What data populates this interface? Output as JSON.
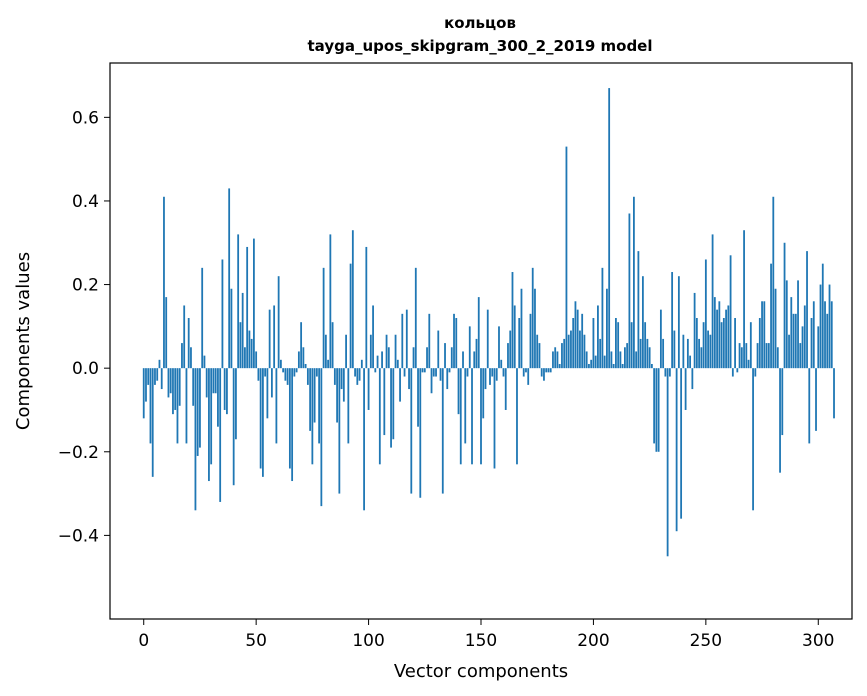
{
  "chart_data": {
    "type": "bar",
    "title_line1": "кольцов",
    "title_line2": "tayga_upos_skipgram_300_2_2019 model",
    "xlabel": "Vector components",
    "ylabel": "Components values",
    "xlim": [
      -15,
      315
    ],
    "ylim": [
      -0.6,
      0.73
    ],
    "xticks": [
      0,
      50,
      100,
      150,
      200,
      250,
      300
    ],
    "yticks": [
      -0.4,
      -0.2,
      0.0,
      0.2,
      0.4,
      0.6
    ],
    "ytick_labels": [
      "−0.4",
      "−0.2",
      "0.0",
      "0.2",
      "0.4",
      "0.6"
    ],
    "xtick_labels": [
      "0",
      "50",
      "100",
      "150",
      "200",
      "250",
      "300"
    ],
    "bar_color": "#1f77b4",
    "grid": false,
    "values": [
      -0.12,
      -0.08,
      -0.04,
      -0.18,
      -0.26,
      -0.04,
      -0.03,
      0.02,
      -0.05,
      0.41,
      0.17,
      -0.07,
      -0.06,
      -0.11,
      -0.1,
      -0.18,
      -0.09,
      0.06,
      0.15,
      -0.18,
      0.12,
      0.05,
      -0.09,
      -0.34,
      -0.21,
      -0.19,
      0.24,
      0.03,
      -0.07,
      -0.27,
      -0.23,
      -0.06,
      -0.06,
      -0.14,
      -0.32,
      0.26,
      -0.1,
      -0.11,
      0.43,
      0.19,
      -0.28,
      -0.17,
      0.32,
      0.11,
      0.18,
      0.05,
      0.29,
      0.09,
      0.07,
      0.31,
      0.04,
      -0.03,
      -0.24,
      -0.26,
      -0.02,
      -0.12,
      0.14,
      -0.07,
      0.15,
      -0.18,
      0.22,
      0.02,
      -0.01,
      -0.03,
      -0.04,
      -0.24,
      -0.27,
      -0.02,
      -0.01,
      0.04,
      0.11,
      0.05,
      0.01,
      -0.04,
      -0.15,
      -0.23,
      -0.13,
      -0.02,
      -0.18,
      -0.33,
      0.24,
      0.08,
      0.02,
      0.32,
      0.11,
      -0.04,
      -0.13,
      -0.3,
      -0.05,
      -0.08,
      0.08,
      -0.18,
      0.25,
      0.33,
      -0.02,
      -0.04,
      -0.03,
      0.02,
      -0.34,
      0.29,
      -0.1,
      0.08,
      0.15,
      -0.01,
      0.03,
      -0.23,
      0.04,
      -0.16,
      0.08,
      0.05,
      -0.19,
      -0.17,
      0.08,
      0.02,
      -0.08,
      0.13,
      -0.02,
      0.14,
      -0.05,
      -0.3,
      0.05,
      0.24,
      -0.14,
      -0.31,
      -0.01,
      -0.01,
      0.05,
      0.13,
      -0.06,
      -0.02,
      -0.02,
      0.09,
      -0.03,
      -0.3,
      0.06,
      -0.05,
      -0.01,
      0.05,
      0.13,
      0.12,
      -0.11,
      -0.23,
      0.04,
      -0.18,
      -0.02,
      0.1,
      -0.23,
      0.04,
      0.07,
      0.17,
      -0.23,
      -0.12,
      -0.05,
      0.14,
      -0.04,
      -0.02,
      -0.24,
      -0.03,
      0.1,
      0.02,
      -0.02,
      -0.1,
      0.06,
      0.09,
      0.23,
      0.15,
      -0.23,
      0.12,
      0.19,
      -0.02,
      -0.01,
      -0.04,
      0.13,
      0.24,
      0.19,
      0.08,
      0.06,
      -0.02,
      -0.03,
      -0.01,
      -0.01,
      -0.01,
      0.04,
      0.05,
      0.04,
      0.01,
      0.06,
      0.07,
      0.53,
      0.08,
      0.09,
      0.12,
      0.16,
      0.14,
      0.09,
      0.13,
      0.08,
      0.04,
      0.01,
      0.02,
      0.12,
      0.03,
      0.15,
      0.07,
      0.24,
      0.03,
      0.19,
      0.67,
      0.04,
      0.01,
      0.12,
      0.11,
      0.04,
      0.01,
      0.05,
      0.06,
      0.37,
      0.11,
      0.41,
      0.04,
      0.28,
      0.07,
      0.22,
      0.11,
      0.07,
      0.05,
      0.01,
      -0.18,
      -0.2,
      -0.2,
      0.14,
      0.07,
      -0.02,
      -0.45,
      -0.02,
      0.23,
      0.09,
      -0.39,
      0.22,
      -0.36,
      0.08,
      -0.1,
      0.07,
      0.03,
      -0.05,
      0.18,
      0.12,
      0.07,
      0.05,
      0.11,
      0.26,
      0.09,
      0.08,
      0.32,
      0.17,
      0.14,
      0.16,
      0.11,
      0.12,
      0.14,
      0.15,
      0.27,
      -0.02,
      0.12,
      -0.01,
      0.06,
      0.05,
      0.33,
      0.06,
      0.02,
      0.11,
      -0.34,
      -0.02,
      0.06,
      0.12,
      0.16,
      0.16,
      0.06,
      0.06,
      0.25,
      0.41,
      0.19,
      0.05,
      -0.25,
      -0.16,
      0.3,
      0.21,
      0.08,
      0.17,
      0.13,
      0.13,
      0.21,
      0.06,
      0.1,
      0.15,
      0.28,
      -0.18,
      0.12,
      0.16,
      -0.15,
      0.1,
      0.2,
      0.25,
      0.16,
      0.13,
      0.2,
      0.16,
      -0.12
    ]
  }
}
